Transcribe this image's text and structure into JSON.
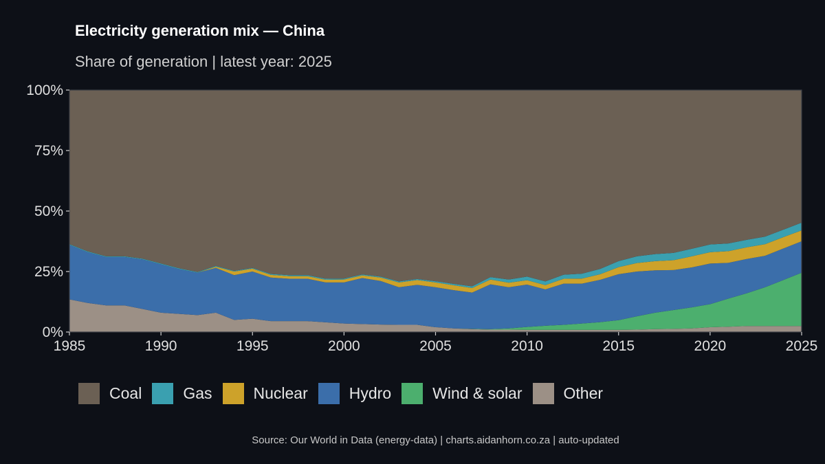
{
  "title": "Electricity generation mix — China",
  "subtitle": "Share of generation | latest year: 2025",
  "source": "Source: Our World in Data (energy-data) | charts.aidanhorn.co.za | auto-updated",
  "chart_data": {
    "type": "area",
    "stacked": true,
    "percent": true,
    "x": [
      1985,
      1986,
      1987,
      1988,
      1989,
      1990,
      1991,
      1992,
      1993,
      1994,
      1995,
      1996,
      1997,
      1998,
      1999,
      2000,
      2001,
      2002,
      2003,
      2004,
      2005,
      2006,
      2007,
      2008,
      2009,
      2010,
      2011,
      2012,
      2013,
      2014,
      2015,
      2016,
      2017,
      2018,
      2019,
      2020,
      2021,
      2022,
      2023,
      2024,
      2025
    ],
    "xlim": [
      1985,
      2025
    ],
    "xticks": [
      1985,
      1990,
      1995,
      2000,
      2005,
      2010,
      2015,
      2020,
      2025
    ],
    "ylim": [
      0,
      100
    ],
    "yticks": [
      0,
      25,
      50,
      75,
      100
    ],
    "ytick_labels": [
      "0%",
      "25%",
      "50%",
      "75%",
      "100%"
    ],
    "grid": false,
    "legend_position": "bottom",
    "series": [
      {
        "name": "Other",
        "color": "#9c9086",
        "values": [
          13.5,
          12,
          11,
          11,
          9.5,
          8,
          7.5,
          7,
          8,
          5,
          5.5,
          4.5,
          4.5,
          4.5,
          4,
          3.5,
          3.3,
          3.1,
          3,
          3,
          2,
          1.5,
          1.2,
          1,
          1,
          0.9,
          0.9,
          0.9,
          0.9,
          0.9,
          0.9,
          1,
          1.2,
          1.3,
          1.5,
          2,
          2.2,
          2.5,
          2.5,
          2.5,
          2.5
        ]
      },
      {
        "name": "Wind & solar",
        "color": "#4caf6e",
        "values": [
          0,
          0,
          0,
          0,
          0,
          0,
          0,
          0,
          0,
          0,
          0,
          0,
          0,
          0,
          0,
          0,
          0,
          0,
          0,
          0,
          0,
          0,
          0.1,
          0.2,
          0.5,
          1.2,
          1.7,
          2.1,
          2.6,
          3.2,
          4,
          5.5,
          6.8,
          7.8,
          8.7,
          9.5,
          11.6,
          13.5,
          16,
          19,
          22
        ]
      },
      {
        "name": "Hydro",
        "color": "#3b6eaa",
        "values": [
          22.5,
          21,
          20,
          20,
          20.5,
          20,
          18.5,
          17.5,
          18.5,
          18.5,
          19.5,
          18,
          17.5,
          17.5,
          16.5,
          17,
          19,
          18,
          15.5,
          16.5,
          16.5,
          15.8,
          15,
          18.5,
          17,
          17.5,
          15,
          17,
          16.5,
          17.5,
          19,
          18.5,
          17.5,
          16.5,
          16.5,
          16.8,
          14.8,
          14.2,
          13,
          13,
          13
        ]
      },
      {
        "name": "Nuclear",
        "color": "#cda22a",
        "values": [
          0,
          0,
          0,
          0,
          0,
          0,
          0,
          0,
          0.5,
          1.5,
          1.2,
          1.1,
          1.1,
          1.1,
          1.1,
          1.2,
          1.1,
          1.4,
          2,
          2,
          2,
          2,
          1.9,
          2,
          1.9,
          1.8,
          1.8,
          2,
          2.1,
          2.3,
          2.9,
          3.5,
          3.8,
          4.1,
          4.6,
          4.7,
          4.8,
          4.8,
          4.8,
          4.7,
          4.5
        ]
      },
      {
        "name": "Gas",
        "color": "#3aa0b0",
        "values": [
          0.3,
          0.3,
          0.3,
          0.3,
          0.3,
          0.3,
          0.3,
          0.3,
          0.3,
          0.3,
          0.3,
          0.4,
          0.4,
          0.4,
          0.4,
          0.4,
          0.4,
          0.4,
          0.4,
          0.4,
          0.5,
          0.6,
          0.7,
          1,
          1.3,
          1.5,
          1.5,
          1.7,
          2,
          2.2,
          2.5,
          2.8,
          2.9,
          3,
          3.1,
          3.2,
          3.2,
          3.1,
          3.1,
          3.1,
          3.2
        ]
      },
      {
        "name": "Coal",
        "color": "#6b6054",
        "values": [
          63.7,
          66.7,
          68.7,
          68.7,
          69.7,
          71.7,
          73.7,
          75.2,
          72.7,
          74.7,
          73.5,
          76,
          76.5,
          76.5,
          78,
          77.9,
          76.2,
          77.1,
          79.1,
          78.1,
          79,
          80.1,
          81.1,
          77.3,
          78.3,
          77.1,
          79.1,
          76.3,
          75.9,
          73.9,
          70.7,
          68.7,
          67.8,
          67.3,
          65.6,
          63.8,
          63.4,
          61.9,
          60.6,
          57.7,
          54.8
        ]
      }
    ]
  },
  "legend_order": [
    "Coal",
    "Gas",
    "Nuclear",
    "Hydro",
    "Wind & solar",
    "Other"
  ]
}
